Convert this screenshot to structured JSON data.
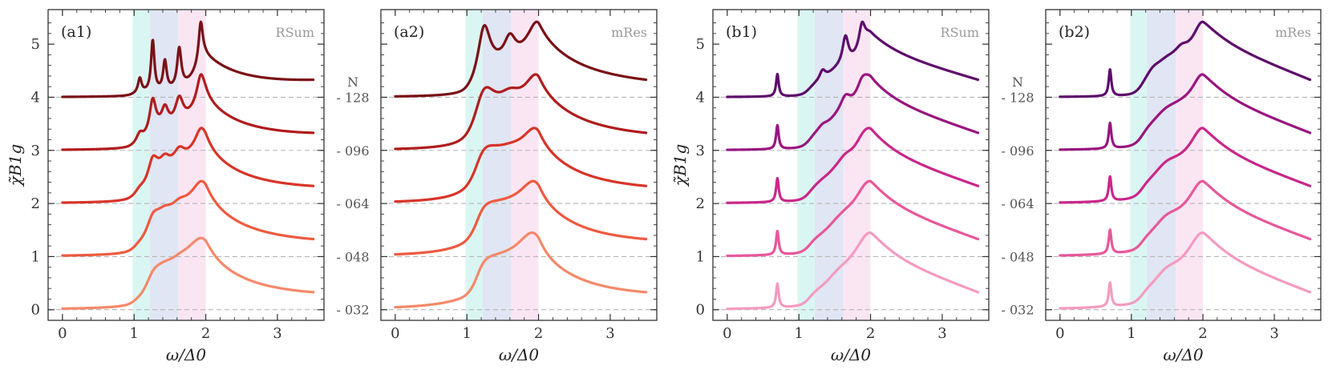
{
  "chart_data": {
    "type": "line",
    "xlabel": "ω/Δ0",
    "ylabel": "χ̃B1g",
    "xlim": [
      -0.2,
      3.65
    ],
    "ylim": [
      -0.2,
      5.65
    ],
    "xticks": [
      "0",
      "1",
      "2",
      "3"
    ],
    "yticks": [
      "0",
      "1",
      "2",
      "3",
      "4",
      "5"
    ],
    "offset_right_axis_label": "N",
    "offset_right_ticks": [
      "032",
      "048",
      "064",
      "096",
      "128"
    ],
    "offsets": [
      0,
      1,
      2,
      3,
      4
    ],
    "shaded_bands": [
      {
        "x0": 0.98,
        "x1": 1.22,
        "color": "#d6f5f2"
      },
      {
        "x0": 1.22,
        "x1": 1.62,
        "color": "#dde3f2"
      },
      {
        "x0": 1.62,
        "x1": 2.0,
        "color": "#f9e3f2"
      }
    ],
    "panels": [
      {
        "id": "a1",
        "label": "(a1)",
        "method": "RSum",
        "family": "red",
        "series_names": [
          "N = 032",
          "N = 048",
          "N = 064",
          "N = 096",
          "N = 128"
        ],
        "colors": [
          "#f4896a",
          "#ee5a40",
          "#d83428",
          "#b01c1c",
          "#7a1016"
        ],
        "peak_heights": [
          1.35,
          1.42,
          1.42,
          1.43,
          1.42
        ]
      },
      {
        "id": "a2",
        "label": "(a2)",
        "method": "mRes",
        "family": "red",
        "series_names": [
          "N = 032",
          "N = 048",
          "N = 064",
          "N = 096",
          "N = 128"
        ],
        "colors": [
          "#f4896a",
          "#ee5a40",
          "#d83428",
          "#b01c1c",
          "#7a1016"
        ],
        "peak_heights": [
          1.45,
          1.42,
          1.42,
          1.43,
          1.42
        ]
      },
      {
        "id": "b1",
        "label": "(b1)",
        "method": "RSum",
        "family": "purple",
        "series_names": [
          "N = 032",
          "N = 048",
          "N = 064",
          "N = 096",
          "N = 128"
        ],
        "colors": [
          "#f49ac0",
          "#e8579a",
          "#c9278a",
          "#99157f",
          "#5e0b6b"
        ],
        "peak_heights": [
          1.45,
          1.42,
          1.42,
          1.43,
          1.42
        ]
      },
      {
        "id": "b2",
        "label": "(b2)",
        "method": "mRes",
        "family": "purple",
        "series_names": [
          "N = 032",
          "N = 048",
          "N = 064",
          "N = 096",
          "N = 128"
        ],
        "colors": [
          "#f49ac0",
          "#e8579a",
          "#c9278a",
          "#99157f",
          "#5e0b6b"
        ],
        "peak_heights": [
          1.45,
          1.42,
          1.42,
          1.43,
          1.42
        ]
      }
    ]
  }
}
